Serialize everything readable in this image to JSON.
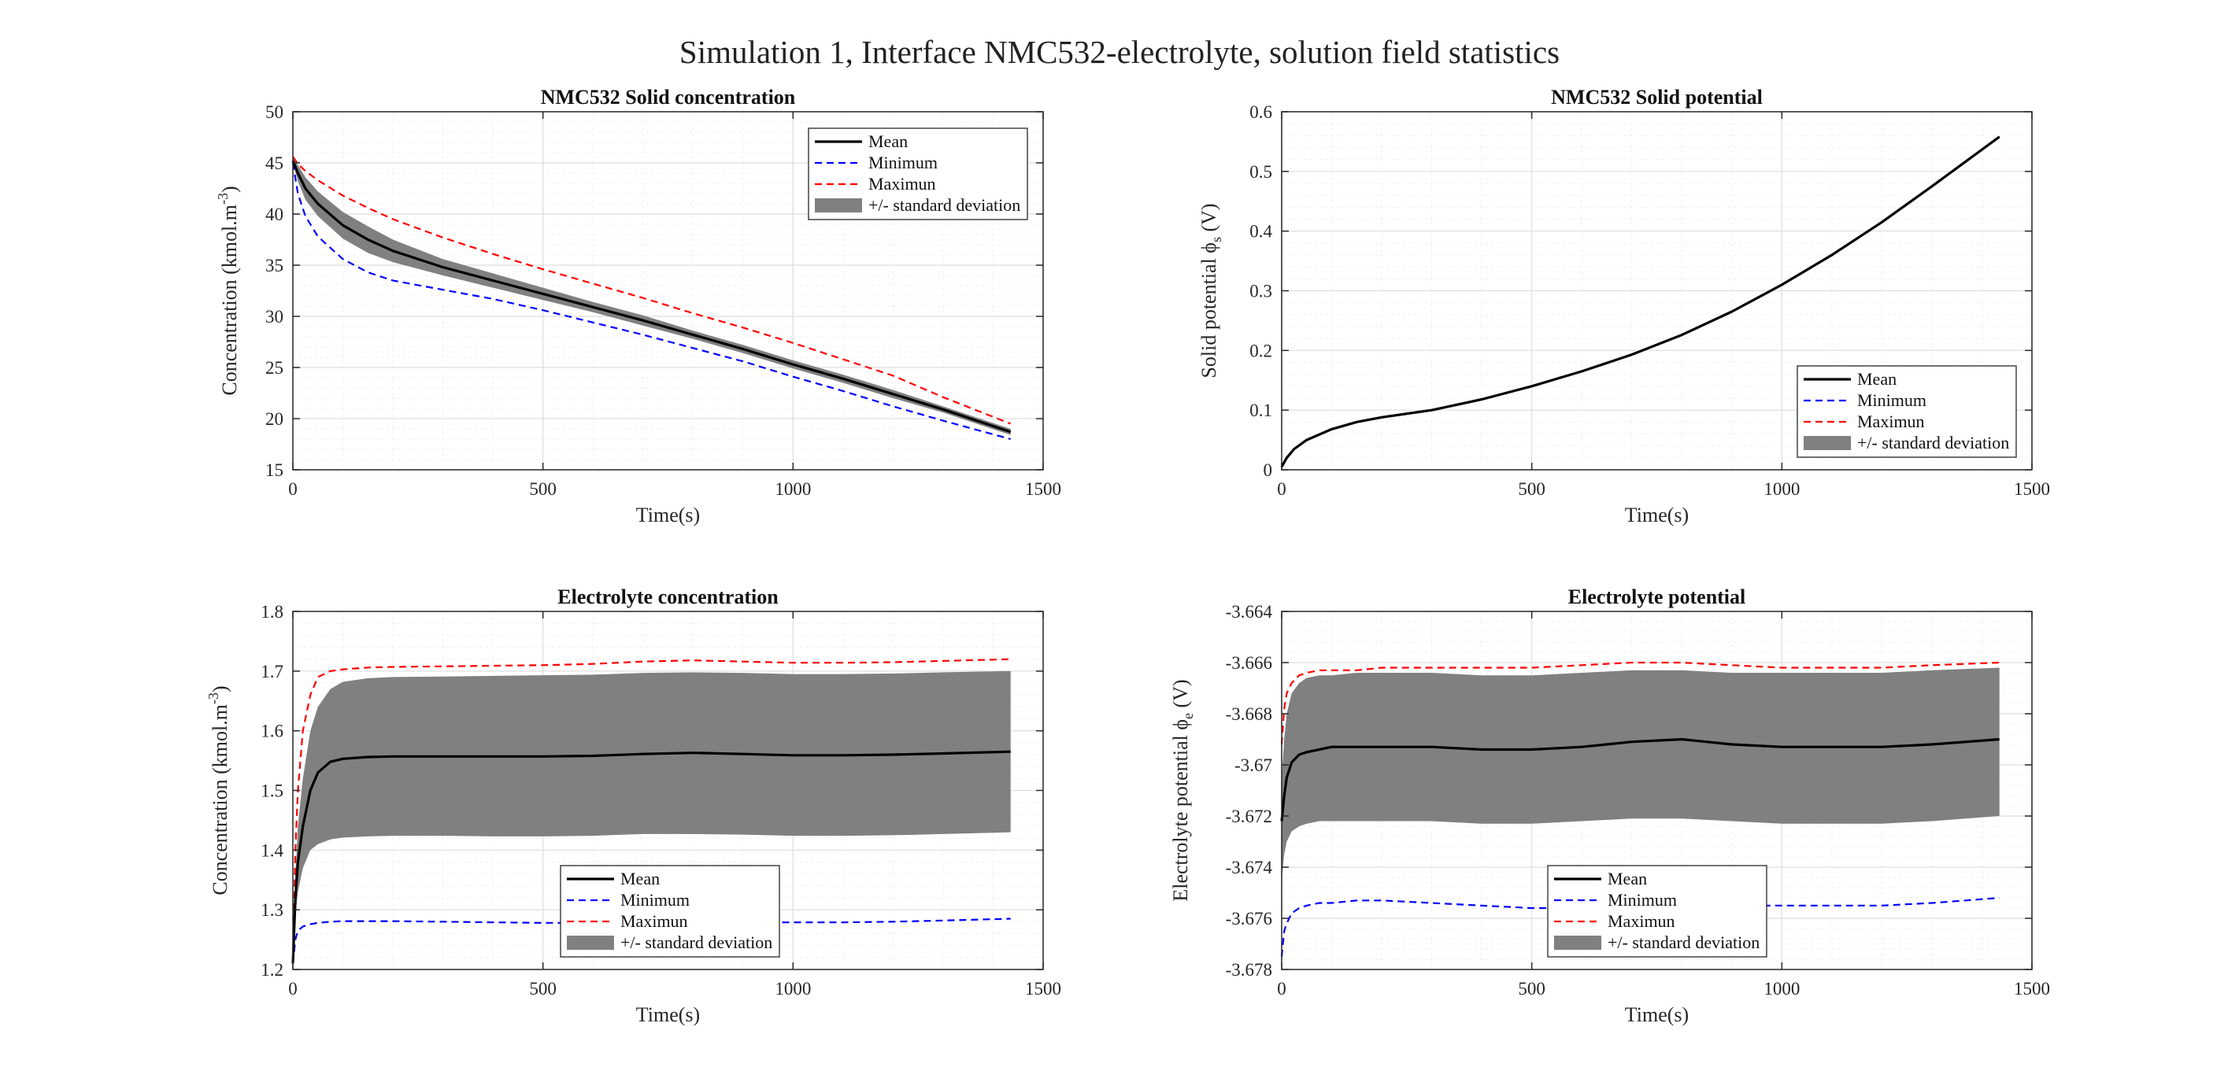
{
  "figure_title": "Simulation 1, Interface NMC532-electrolyte, solution field statistics",
  "colors": {
    "mean": "#000000",
    "minimum": "#0000ff",
    "maximum": "#ff0000",
    "std_band": "#808080"
  },
  "chart_data": [
    {
      "type": "line",
      "title": "NMC532 Solid concentration",
      "xlabel": "Time(s)",
      "ylabel": "Concentration (kmol.m^{-3})",
      "xlim": [
        0,
        1500
      ],
      "ylim": [
        15,
        50
      ],
      "xticks": [
        0,
        500,
        1000,
        1500
      ],
      "yticks": [
        15,
        20,
        25,
        30,
        35,
        40,
        45,
        50
      ],
      "grid": true,
      "legend": {
        "position": "top-right",
        "entries": [
          "Mean",
          "Minimum",
          "Maximun",
          "+/- standard deviation"
        ]
      },
      "x": [
        0,
        10,
        25,
        50,
        100,
        150,
        200,
        300,
        400,
        500,
        600,
        700,
        800,
        900,
        1000,
        1100,
        1200,
        1300,
        1435
      ],
      "series": [
        {
          "name": "Mean",
          "values": [
            45.2,
            44.0,
            42.5,
            41.0,
            38.9,
            37.5,
            36.4,
            34.8,
            33.5,
            32.2,
            30.9,
            29.6,
            28.2,
            26.8,
            25.3,
            23.9,
            22.4,
            20.9,
            18.7
          ]
        },
        {
          "name": "Minimum",
          "values": [
            45.0,
            42.0,
            39.8,
            37.8,
            35.6,
            34.3,
            33.5,
            32.6,
            31.7,
            30.6,
            29.4,
            28.2,
            26.9,
            25.6,
            24.1,
            22.7,
            21.2,
            19.8,
            18.0
          ]
        },
        {
          "name": "Maximun",
          "values": [
            45.6,
            44.9,
            44.2,
            43.3,
            41.8,
            40.6,
            39.5,
            37.7,
            36.1,
            34.6,
            33.2,
            31.8,
            30.3,
            28.9,
            27.4,
            25.8,
            24.2,
            22.1,
            19.5
          ]
        },
        {
          "name": "+/- standard deviation",
          "lower": [
            45.0,
            43.2,
            41.4,
            39.8,
            37.6,
            36.2,
            35.3,
            34.0,
            32.8,
            31.6,
            30.4,
            29.1,
            27.8,
            26.4,
            24.9,
            23.5,
            22.0,
            20.6,
            18.4
          ],
          "upper": [
            45.4,
            44.8,
            43.6,
            42.2,
            40.2,
            38.8,
            37.5,
            35.6,
            34.2,
            32.8,
            31.4,
            30.1,
            28.6,
            27.2,
            25.7,
            24.3,
            22.8,
            21.2,
            19.0
          ]
        }
      ]
    },
    {
      "type": "line",
      "title": "NMC532 Solid potential",
      "xlabel": "Time(s)",
      "ylabel": "Solid potential ϕ_s (V)",
      "xlim": [
        0,
        1500
      ],
      "ylim": [
        0,
        0.6
      ],
      "xticks": [
        0,
        500,
        1000,
        1500
      ],
      "yticks": [
        0,
        0.1,
        0.2,
        0.3,
        0.4,
        0.5,
        0.6
      ],
      "grid": true,
      "legend": {
        "position": "bottom-right",
        "entries": [
          "Mean",
          "Minimum",
          "Maximun",
          "+/- standard deviation"
        ]
      },
      "x": [
        0,
        10,
        25,
        50,
        100,
        150,
        200,
        300,
        400,
        500,
        600,
        700,
        800,
        900,
        1000,
        1100,
        1200,
        1300,
        1435
      ],
      "series": [
        {
          "name": "Mean",
          "values": [
            0.005,
            0.02,
            0.035,
            0.05,
            0.068,
            0.08,
            0.088,
            0.1,
            0.118,
            0.14,
            0.165,
            0.193,
            0.226,
            0.265,
            0.31,
            0.36,
            0.415,
            0.475,
            0.558
          ]
        },
        {
          "name": "Minimum",
          "values": [
            0.005,
            0.02,
            0.035,
            0.05,
            0.068,
            0.08,
            0.088,
            0.1,
            0.118,
            0.14,
            0.165,
            0.193,
            0.226,
            0.265,
            0.31,
            0.36,
            0.415,
            0.475,
            0.558
          ]
        },
        {
          "name": "Maximun",
          "values": [
            0.005,
            0.02,
            0.035,
            0.05,
            0.068,
            0.08,
            0.088,
            0.1,
            0.118,
            0.14,
            0.165,
            0.193,
            0.226,
            0.265,
            0.31,
            0.36,
            0.415,
            0.475,
            0.558
          ]
        },
        {
          "name": "+/- standard deviation",
          "lower": [
            0.005,
            0.02,
            0.035,
            0.05,
            0.068,
            0.08,
            0.088,
            0.1,
            0.118,
            0.14,
            0.165,
            0.193,
            0.226,
            0.265,
            0.31,
            0.36,
            0.415,
            0.475,
            0.558
          ],
          "upper": [
            0.005,
            0.02,
            0.035,
            0.05,
            0.068,
            0.08,
            0.088,
            0.1,
            0.118,
            0.14,
            0.165,
            0.193,
            0.226,
            0.265,
            0.31,
            0.36,
            0.415,
            0.475,
            0.558
          ]
        }
      ]
    },
    {
      "type": "line",
      "title": "Electrolyte concentration",
      "xlabel": "Time(s)",
      "ylabel": "Concentration (kmol.m^{-3})",
      "xlim": [
        0,
        1500
      ],
      "ylim": [
        1.2,
        1.8
      ],
      "xticks": [
        0,
        500,
        1000,
        1500
      ],
      "yticks": [
        1.2,
        1.3,
        1.4,
        1.5,
        1.6,
        1.7,
        1.8
      ],
      "grid": true,
      "legend": {
        "position": "bottom-center",
        "entries": [
          "Mean",
          "Minimum",
          "Maximun",
          "+/- standard deviation"
        ]
      },
      "x": [
        0,
        5,
        10,
        20,
        35,
        50,
        75,
        100,
        150,
        200,
        300,
        400,
        500,
        600,
        700,
        800,
        900,
        1000,
        1100,
        1200,
        1300,
        1435
      ],
      "series": [
        {
          "name": "Mean",
          "values": [
            1.21,
            1.32,
            1.38,
            1.44,
            1.5,
            1.53,
            1.548,
            1.553,
            1.556,
            1.557,
            1.557,
            1.557,
            1.557,
            1.558,
            1.561,
            1.563,
            1.561,
            1.559,
            1.559,
            1.56,
            1.562,
            1.565
          ]
        },
        {
          "name": "Minimum",
          "values": [
            1.21,
            1.25,
            1.265,
            1.272,
            1.276,
            1.278,
            1.28,
            1.281,
            1.281,
            1.281,
            1.28,
            1.279,
            1.278,
            1.278,
            1.278,
            1.279,
            1.279,
            1.279,
            1.279,
            1.28,
            1.282,
            1.285
          ]
        },
        {
          "name": "Maximun",
          "values": [
            1.22,
            1.4,
            1.5,
            1.6,
            1.66,
            1.69,
            1.7,
            1.703,
            1.706,
            1.707,
            1.708,
            1.709,
            1.71,
            1.712,
            1.716,
            1.718,
            1.716,
            1.714,
            1.714,
            1.715,
            1.717,
            1.72
          ]
        },
        {
          "name": "+/- standard deviation",
          "lower": [
            1.21,
            1.29,
            1.33,
            1.37,
            1.4,
            1.41,
            1.418,
            1.421,
            1.423,
            1.424,
            1.424,
            1.423,
            1.423,
            1.424,
            1.427,
            1.427,
            1.426,
            1.424,
            1.424,
            1.425,
            1.427,
            1.43
          ],
          "upper": [
            1.21,
            1.36,
            1.44,
            1.52,
            1.6,
            1.64,
            1.67,
            1.682,
            1.688,
            1.69,
            1.691,
            1.692,
            1.693,
            1.694,
            1.697,
            1.698,
            1.697,
            1.695,
            1.695,
            1.696,
            1.698,
            1.7
          ]
        }
      ]
    },
    {
      "type": "line",
      "title": "Electrolyte potential",
      "xlabel": "Time(s)",
      "ylabel": "Electrolyte potential ϕ_e (V)",
      "xlim": [
        0,
        1500
      ],
      "ylim": [
        -3.678,
        -3.664
      ],
      "xticks": [
        0,
        500,
        1000,
        1500
      ],
      "yticks": [
        -3.678,
        -3.676,
        -3.674,
        -3.672,
        -3.67,
        -3.668,
        -3.666,
        -3.664
      ],
      "grid": true,
      "legend": {
        "position": "bottom-center",
        "entries": [
          "Mean",
          "Minimum",
          "Maximun",
          "+/- standard deviation"
        ]
      },
      "x": [
        0,
        5,
        10,
        20,
        35,
        50,
        75,
        100,
        150,
        200,
        300,
        400,
        500,
        600,
        700,
        800,
        900,
        1000,
        1100,
        1200,
        1300,
        1435
      ],
      "series": [
        {
          "name": "Mean",
          "values": [
            -3.6722,
            -3.6712,
            -3.6705,
            -3.6699,
            -3.6696,
            -3.6695,
            -3.6694,
            -3.6693,
            -3.6693,
            -3.6693,
            -3.6693,
            -3.6694,
            -3.6694,
            -3.6693,
            -3.6691,
            -3.669,
            -3.6692,
            -3.6693,
            -3.6693,
            -3.6693,
            -3.6692,
            -3.669
          ]
        },
        {
          "name": "Minimum",
          "values": [
            -3.6775,
            -3.6765,
            -3.6762,
            -3.6758,
            -3.6756,
            -3.6755,
            -3.6754,
            -3.6754,
            -3.6753,
            -3.6753,
            -3.6754,
            -3.6755,
            -3.6756,
            -3.6756,
            -3.6755,
            -3.6754,
            -3.6755,
            -3.6755,
            -3.6755,
            -3.6755,
            -3.6754,
            -3.6752
          ]
        },
        {
          "name": "Maximun",
          "values": [
            -3.6692,
            -3.6678,
            -3.6672,
            -3.6668,
            -3.6665,
            -3.6664,
            -3.6663,
            -3.6663,
            -3.6663,
            -3.6662,
            -3.6662,
            -3.6662,
            -3.6662,
            -3.6661,
            -3.666,
            -3.666,
            -3.6661,
            -3.6662,
            -3.6662,
            -3.6662,
            -3.6661,
            -3.666
          ]
        },
        {
          "name": "+/- standard deviation",
          "lower": [
            -3.6745,
            -3.6735,
            -3.673,
            -3.6726,
            -3.6724,
            -3.6723,
            -3.6722,
            -3.6722,
            -3.6722,
            -3.6722,
            -3.6722,
            -3.6723,
            -3.6723,
            -3.6722,
            -3.6721,
            -3.6721,
            -3.6722,
            -3.6723,
            -3.6723,
            -3.6723,
            -3.6722,
            -3.672
          ],
          "upper": [
            -3.6705,
            -3.669,
            -3.668,
            -3.6672,
            -3.6668,
            -3.6666,
            -3.6665,
            -3.6665,
            -3.6664,
            -3.6664,
            -3.6664,
            -3.6665,
            -3.6665,
            -3.6664,
            -3.6663,
            -3.6663,
            -3.6664,
            -3.6664,
            -3.6664,
            -3.6664,
            -3.6663,
            -3.6662
          ]
        }
      ]
    }
  ]
}
